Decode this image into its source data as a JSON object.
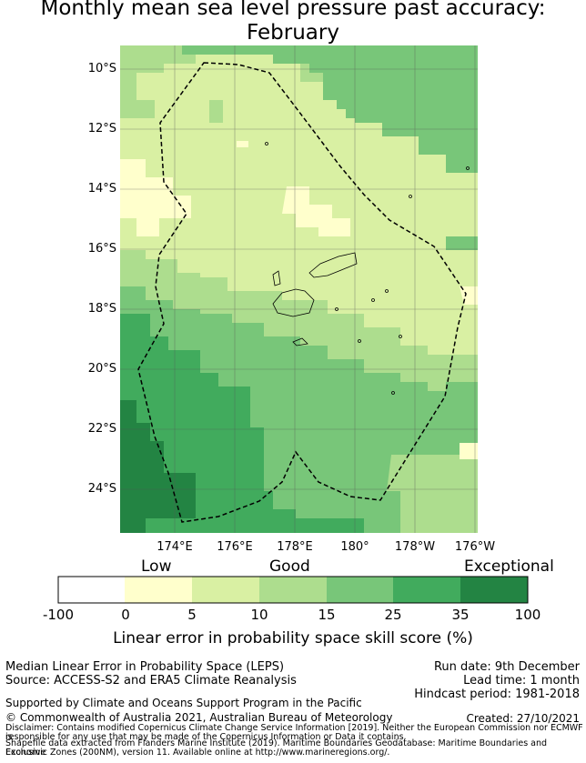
{
  "title": {
    "line1": "Monthly mean sea level pressure past accuracy:",
    "line2": "February"
  },
  "map": {
    "lat_labels": [
      "10°S",
      "12°S",
      "14°S",
      "16°S",
      "18°S",
      "20°S",
      "22°S",
      "24°S"
    ],
    "lon_labels": [
      "174°E",
      "176°E",
      "178°E",
      "180°",
      "178°W",
      "176°W"
    ],
    "colors": [
      "#ffffff",
      "#ffffcc",
      "#d9f0a3",
      "#addd8e",
      "#78c679",
      "#41ab5d",
      "#238443"
    ]
  },
  "colorbar": {
    "category_low": "Low",
    "category_good": "Good",
    "category_exceptional": "Exceptional",
    "ticks": [
      "-100",
      "0",
      "5",
      "10",
      "15",
      "25",
      "35",
      "100"
    ],
    "label": "Linear error in probability space skill score (%)"
  },
  "footer": {
    "method": "Median Linear Error in Probability Space (LEPS)",
    "source": "Source: ACCESS-S2 and ERA5 Climate Reanalysis",
    "run_date": "Run date: 9th December",
    "lead_time": "Lead time: 1 month",
    "hindcast": "Hindcast period: 1981-2018",
    "support": "Supported by Climate and Oceans Support Program in the Pacific",
    "copyright": "© Commonwealth of Australia 2021, Australian Bureau of Meteorology",
    "created": "Created: 27/10/2021",
    "disclaimer1": "Disclaimer: Contains modified Copernicus Climate Change Service Information [2019]. Neither the European Commission nor ECMWF is",
    "disclaimer2": "responsible for any use that may be made of the Copernicus Information or Data it contains.",
    "shapefile1": "Shapefile data extracted from Flanders Marine Institute (2019). Maritime Boundaries Geodatabase: Maritime Boundaries and Exclusive",
    "shapefile2": "Economic Zones (200NM), version 11. Available online at http://www.marineregions.org/."
  }
}
